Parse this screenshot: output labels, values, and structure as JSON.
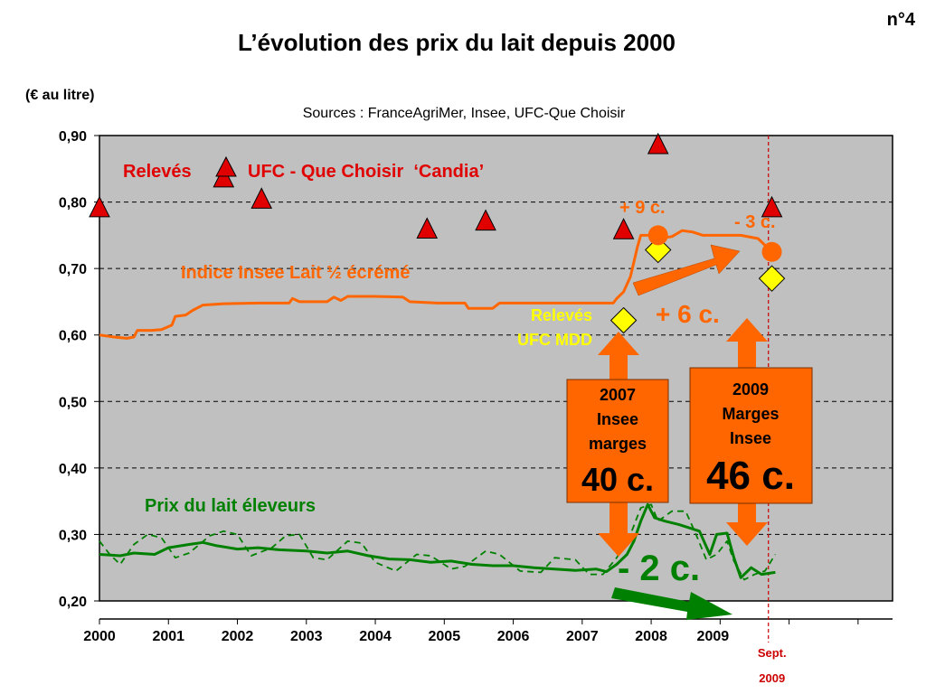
{
  "page": {
    "slide_number": "n°4",
    "title": "L’évolution des prix du lait depuis 2000",
    "unit_label": "(€ au litre)",
    "sources": "Sources : FranceAgriMer, Insee, UFC-Que Choisir"
  },
  "chart_data": {
    "type": "line",
    "x_axis": {
      "tick_labels": [
        "2000",
        "2001",
        "2002",
        "2003",
        "2004",
        "2005",
        "2006",
        "2007",
        "2008",
        "2009"
      ],
      "range": [
        2000.0,
        2011.5
      ],
      "marker_line": {
        "x": 2009.7,
        "label_line1": "Sept.",
        "label_line2": "2009"
      }
    },
    "y_axis": {
      "range": [
        0.2,
        0.9
      ],
      "tick_values": [
        0.2,
        0.3,
        0.4,
        0.5,
        0.6,
        0.7,
        0.8,
        0.9
      ],
      "tick_labels": [
        "0,20",
        "0,30",
        "0,40",
        "0,50",
        "0,60",
        "0,70",
        "0,80",
        "0,90"
      ],
      "gridlines": "dashed"
    },
    "colors": {
      "plot_bg": "#c0c0c0",
      "insee_lait": "#ff6600",
      "eleveurs": "#008000",
      "candia": "#e00000",
      "mdd": "#ffff00",
      "arrow_orange": "#ff6600",
      "arrow_green": "#008000",
      "marker_line": "#cc0000"
    },
    "series": [
      {
        "key": "insee_lait",
        "name": "Indice Insee Lait ½ écrémé",
        "style": "line",
        "points": [
          [
            2000.0,
            0.6
          ],
          [
            2000.2,
            0.597
          ],
          [
            2000.4,
            0.595
          ],
          [
            2000.5,
            0.597
          ],
          [
            2000.55,
            0.607
          ],
          [
            2000.75,
            0.607
          ],
          [
            2000.9,
            0.608
          ],
          [
            2001.05,
            0.615
          ],
          [
            2001.1,
            0.628
          ],
          [
            2001.25,
            0.63
          ],
          [
            2001.35,
            0.637
          ],
          [
            2001.5,
            0.645
          ],
          [
            2001.8,
            0.647
          ],
          [
            2002.3,
            0.648
          ],
          [
            2002.75,
            0.648
          ],
          [
            2002.8,
            0.655
          ],
          [
            2002.9,
            0.65
          ],
          [
            2003.3,
            0.65
          ],
          [
            2003.4,
            0.657
          ],
          [
            2003.5,
            0.652
          ],
          [
            2003.6,
            0.658
          ],
          [
            2004.0,
            0.658
          ],
          [
            2004.4,
            0.657
          ],
          [
            2004.5,
            0.65
          ],
          [
            2004.9,
            0.648
          ],
          [
            2005.3,
            0.648
          ],
          [
            2005.35,
            0.64
          ],
          [
            2005.7,
            0.64
          ],
          [
            2005.8,
            0.648
          ],
          [
            2006.5,
            0.648
          ],
          [
            2007.45,
            0.648
          ],
          [
            2007.5,
            0.655
          ],
          [
            2007.6,
            0.665
          ],
          [
            2007.7,
            0.688
          ],
          [
            2007.75,
            0.71
          ],
          [
            2007.8,
            0.732
          ],
          [
            2007.85,
            0.75
          ],
          [
            2008.0,
            0.75
          ],
          [
            2008.1,
            0.745
          ],
          [
            2008.3,
            0.748
          ],
          [
            2008.45,
            0.757
          ],
          [
            2008.6,
            0.755
          ],
          [
            2008.75,
            0.75
          ],
          [
            2009.0,
            0.75
          ],
          [
            2009.3,
            0.75
          ],
          [
            2009.55,
            0.745
          ],
          [
            2009.75,
            0.725
          ]
        ]
      },
      {
        "key": "eleveurs",
        "name": "Prix du lait éleveurs",
        "style": "line",
        "points": [
          [
            2000.0,
            0.27
          ],
          [
            2000.3,
            0.268
          ],
          [
            2000.5,
            0.272
          ],
          [
            2000.8,
            0.27
          ],
          [
            2001.0,
            0.28
          ],
          [
            2001.3,
            0.285
          ],
          [
            2001.5,
            0.288
          ],
          [
            2001.7,
            0.283
          ],
          [
            2002.0,
            0.278
          ],
          [
            2002.3,
            0.28
          ],
          [
            2002.6,
            0.277
          ],
          [
            2003.0,
            0.275
          ],
          [
            2003.3,
            0.272
          ],
          [
            2003.6,
            0.275
          ],
          [
            2003.9,
            0.268
          ],
          [
            2004.2,
            0.263
          ],
          [
            2004.5,
            0.262
          ],
          [
            2004.8,
            0.258
          ],
          [
            2005.1,
            0.26
          ],
          [
            2005.4,
            0.255
          ],
          [
            2005.7,
            0.253
          ],
          [
            2006.0,
            0.253
          ],
          [
            2006.3,
            0.25
          ],
          [
            2006.6,
            0.248
          ],
          [
            2006.9,
            0.246
          ],
          [
            2007.2,
            0.248
          ],
          [
            2007.35,
            0.244
          ],
          [
            2007.5,
            0.255
          ],
          [
            2007.65,
            0.27
          ],
          [
            2007.75,
            0.29
          ],
          [
            2007.85,
            0.32
          ],
          [
            2007.95,
            0.345
          ],
          [
            2008.05,
            0.325
          ],
          [
            2008.2,
            0.32
          ],
          [
            2008.4,
            0.315
          ],
          [
            2008.55,
            0.31
          ],
          [
            2008.7,
            0.305
          ],
          [
            2008.85,
            0.27
          ],
          [
            2008.95,
            0.3
          ],
          [
            2009.1,
            0.302
          ],
          [
            2009.2,
            0.265
          ],
          [
            2009.3,
            0.235
          ],
          [
            2009.45,
            0.25
          ],
          [
            2009.6,
            0.24
          ],
          [
            2009.8,
            0.243
          ]
        ]
      },
      {
        "key": "eleveurs_dashed",
        "style": "dashed",
        "points": [
          [
            2000.0,
            0.29
          ],
          [
            2000.15,
            0.27
          ],
          [
            2000.3,
            0.255
          ],
          [
            2000.5,
            0.285
          ],
          [
            2000.7,
            0.3
          ],
          [
            2000.9,
            0.295
          ],
          [
            2001.1,
            0.265
          ],
          [
            2001.3,
            0.272
          ],
          [
            2001.6,
            0.298
          ],
          [
            2001.8,
            0.305
          ],
          [
            2002.0,
            0.3
          ],
          [
            2002.2,
            0.268
          ],
          [
            2002.5,
            0.28
          ],
          [
            2002.7,
            0.298
          ],
          [
            2002.9,
            0.3
          ],
          [
            2003.1,
            0.265
          ],
          [
            2003.3,
            0.262
          ],
          [
            2003.6,
            0.29
          ],
          [
            2003.8,
            0.287
          ],
          [
            2004.0,
            0.258
          ],
          [
            2004.3,
            0.245
          ],
          [
            2004.6,
            0.27
          ],
          [
            2004.8,
            0.268
          ],
          [
            2005.1,
            0.248
          ],
          [
            2005.3,
            0.252
          ],
          [
            2005.6,
            0.275
          ],
          [
            2005.8,
            0.27
          ],
          [
            2006.1,
            0.245
          ],
          [
            2006.4,
            0.243
          ],
          [
            2006.6,
            0.265
          ],
          [
            2006.9,
            0.262
          ],
          [
            2007.1,
            0.24
          ],
          [
            2007.3,
            0.24
          ],
          [
            2007.5,
            0.265
          ],
          [
            2007.7,
            0.3
          ],
          [
            2007.85,
            0.34
          ],
          [
            2008.0,
            0.345
          ],
          [
            2008.1,
            0.32
          ],
          [
            2008.3,
            0.335
          ],
          [
            2008.5,
            0.335
          ],
          [
            2008.65,
            0.3
          ],
          [
            2008.8,
            0.262
          ],
          [
            2008.95,
            0.27
          ],
          [
            2009.1,
            0.29
          ],
          [
            2009.2,
            0.26
          ],
          [
            2009.35,
            0.232
          ],
          [
            2009.5,
            0.24
          ],
          [
            2009.65,
            0.245
          ],
          [
            2009.8,
            0.27
          ]
        ]
      },
      {
        "key": "candia",
        "style": "triangles",
        "points": [
          [
            2000.0,
            0.79
          ],
          [
            2001.8,
            0.835
          ],
          [
            2002.35,
            0.803
          ],
          [
            2004.75,
            0.758
          ],
          [
            2005.6,
            0.77
          ],
          [
            2007.6,
            0.757
          ],
          [
            2008.1,
            0.885
          ],
          [
            2009.75,
            0.79
          ]
        ]
      },
      {
        "key": "mdd",
        "style": "diamonds",
        "points": [
          [
            2007.6,
            0.622
          ],
          [
            2008.1,
            0.728
          ],
          [
            2009.75,
            0.685
          ]
        ]
      },
      {
        "key": "insee_dots",
        "style": "circles",
        "points": [
          [
            2008.1,
            0.75
          ],
          [
            2009.75,
            0.725
          ]
        ]
      }
    ],
    "labels": {
      "releves_prefix": "Relevés",
      "candia_legend": "UFC - Que Choisir  ‘Candia’",
      "insee_lait": "Indice Insee Lait ½ écrémé",
      "mdd_line1": "Relevés",
      "mdd_line2": "UFC MDD",
      "eleveurs": "Prix du lait éleveurs",
      "plus_9": "+ 9 c.",
      "minus_3": "- 3 c.",
      "plus_6": "+ 6 c.",
      "minus_2": "- 2 c."
    },
    "boxes": [
      {
        "key": "box_2007",
        "line1": "2007",
        "line2": "Insee",
        "line3": "marges",
        "big": "40 c."
      },
      {
        "key": "box_2009",
        "line1": "2009",
        "line2": "Marges",
        "line3": "Insee",
        "big": "46 c."
      }
    ]
  }
}
